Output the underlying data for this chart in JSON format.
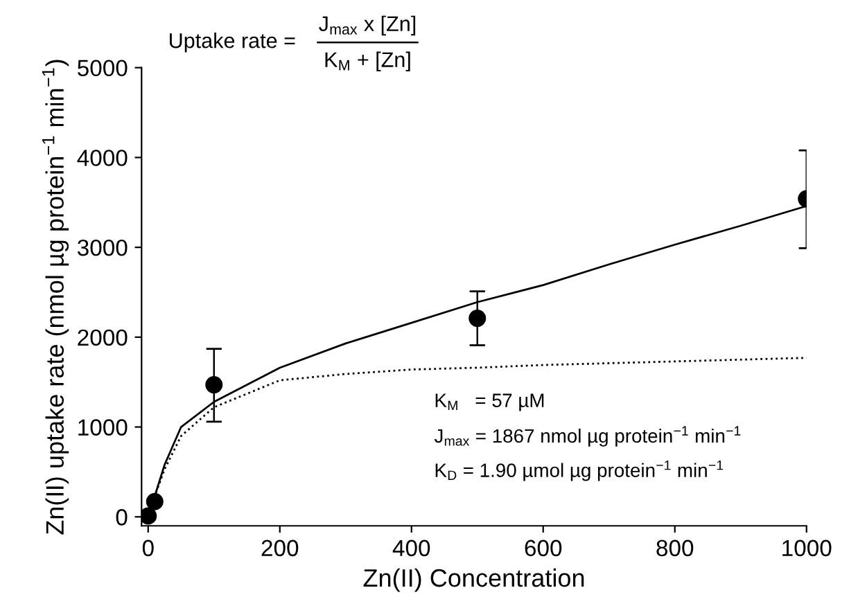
{
  "chart_data": {
    "type": "scatter",
    "xlabel": "Zn(II) Concentration",
    "ylabel": "Zn(II) uptake rate (nmol µg protein$^{−1}$ min$^{−1}$)",
    "xlim": [
      -10,
      1000
    ],
    "ylim": [
      -100,
      5000
    ],
    "xticks": [
      0,
      200,
      400,
      600,
      800,
      1000
    ],
    "yticks": [
      0,
      1000,
      2000,
      3000,
      4000,
      5000
    ],
    "grid": false,
    "legend": false,
    "series": [
      {
        "type": "line",
        "line_style": "solid",
        "color": "#000000",
        "x": [
          0,
          10,
          25,
          50,
          100,
          200,
          300,
          400,
          500,
          600,
          700,
          800,
          900,
          1000
        ],
        "values": [
          0,
          230,
          580,
          1000,
          1280,
          1660,
          1930,
          2160,
          2390,
          2580,
          2810,
          3030,
          3240,
          3460
        ]
      },
      {
        "type": "line",
        "line_style": "dotted",
        "color": "#000000",
        "x": [
          0,
          10,
          25,
          50,
          100,
          200,
          300,
          400,
          500,
          600,
          800,
          1000
        ],
        "values": [
          0,
          230,
          530,
          900,
          1220,
          1520,
          1590,
          1640,
          1660,
          1690,
          1730,
          1770
        ]
      },
      {
        "marker": "circle",
        "color": "#000000",
        "x": [
          0,
          10,
          100,
          500,
          1000
        ],
        "values": [
          10,
          170,
          1470,
          2210,
          3540
        ],
        "errors": [
          null,
          null,
          [
            1060,
            1870
          ],
          [
            1910,
            2510
          ],
          [
            2990,
            4080
          ]
        ]
      }
    ],
    "annotations": [
      "Uptake rate =",
      "J$_{max}$ x [Zn]",
      "K$_{M}$ + [Zn]",
      "K$_{M}$   = 57 µM",
      "J$_{max}$ = 1867 nmol µg protein$^{−1}$ min$^{−1}$",
      "K$_{D}$ = 1.90 µmol µg protein$^{−1}$ min$^{−1}$"
    ]
  }
}
